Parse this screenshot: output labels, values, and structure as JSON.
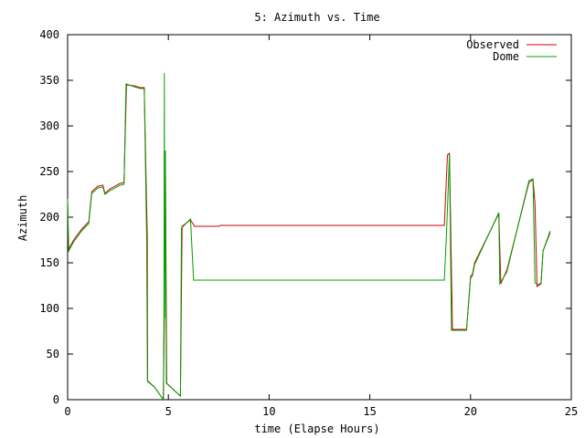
{
  "chart_data": {
    "type": "line",
    "title": "5: Azimuth vs. Time",
    "xlabel": "time (Elapse Hours)",
    "ylabel": "Azimuth",
    "xlim": [
      0,
      25
    ],
    "ylim": [
      0,
      400
    ],
    "xticks": [
      0,
      5,
      10,
      15,
      20,
      25
    ],
    "yticks": [
      0,
      50,
      100,
      150,
      200,
      250,
      300,
      350,
      400
    ],
    "grid": false,
    "legend_position": "top-right",
    "series": [
      {
        "name": "Observed",
        "color": "#cc0000",
        "points": [
          [
            0.0,
            220
          ],
          [
            0.05,
            165
          ],
          [
            0.3,
            175
          ],
          [
            0.7,
            187
          ],
          [
            1.05,
            195
          ],
          [
            1.2,
            228
          ],
          [
            1.5,
            234
          ],
          [
            1.75,
            235
          ],
          [
            1.85,
            226
          ],
          [
            2.1,
            231
          ],
          [
            2.6,
            237
          ],
          [
            2.8,
            238
          ],
          [
            2.92,
            345
          ],
          [
            3.3,
            344
          ],
          [
            3.6,
            342
          ],
          [
            3.8,
            342
          ],
          [
            3.95,
            180
          ],
          [
            3.97,
            20
          ],
          [
            4.3,
            14
          ],
          [
            4.75,
            0
          ],
          [
            4.8,
            90
          ],
          [
            4.85,
            270
          ],
          [
            4.92,
            18
          ],
          [
            5.3,
            10
          ],
          [
            5.6,
            4
          ],
          [
            5.68,
            190
          ],
          [
            6.1,
            197
          ],
          [
            6.3,
            190
          ],
          [
            7.5,
            190
          ],
          [
            7.6,
            191
          ],
          [
            18.7,
            191
          ],
          [
            18.85,
            268
          ],
          [
            18.95,
            270
          ],
          [
            19.1,
            77
          ],
          [
            19.8,
            77
          ],
          [
            20.0,
            135
          ],
          [
            20.1,
            138
          ],
          [
            20.2,
            150
          ],
          [
            21.4,
            204
          ],
          [
            21.5,
            127
          ],
          [
            21.8,
            142
          ],
          [
            22.9,
            238
          ],
          [
            23.1,
            241
          ],
          [
            23.2,
            215
          ],
          [
            23.3,
            124
          ],
          [
            23.5,
            127
          ],
          [
            23.6,
            163
          ],
          [
            23.95,
            183
          ]
        ]
      },
      {
        "name": "Dome",
        "color": "#00a000",
        "points": [
          [
            0.0,
            220
          ],
          [
            0.05,
            163
          ],
          [
            0.3,
            173
          ],
          [
            0.7,
            185
          ],
          [
            1.05,
            193
          ],
          [
            1.2,
            226
          ],
          [
            1.5,
            232
          ],
          [
            1.75,
            233
          ],
          [
            1.85,
            225
          ],
          [
            2.1,
            229
          ],
          [
            2.6,
            235
          ],
          [
            2.8,
            236
          ],
          [
            2.9,
            346
          ],
          [
            3.3,
            343
          ],
          [
            3.6,
            341
          ],
          [
            3.8,
            341
          ],
          [
            3.92,
            180
          ],
          [
            3.96,
            21
          ],
          [
            4.3,
            14
          ],
          [
            4.75,
            0
          ],
          [
            4.78,
            95
          ],
          [
            4.8,
            358
          ],
          [
            4.82,
            90
          ],
          [
            4.85,
            273
          ],
          [
            4.9,
            18
          ],
          [
            5.3,
            10
          ],
          [
            5.6,
            4
          ],
          [
            5.65,
            188
          ],
          [
            6.1,
            198
          ],
          [
            6.25,
            131
          ],
          [
            18.7,
            131
          ],
          [
            18.8,
            180
          ],
          [
            18.95,
            268
          ],
          [
            19.05,
            76
          ],
          [
            19.8,
            76
          ],
          [
            20.0,
            133
          ],
          [
            20.1,
            136
          ],
          [
            20.2,
            148
          ],
          [
            21.4,
            205
          ],
          [
            21.45,
            127
          ],
          [
            21.8,
            140
          ],
          [
            22.9,
            240
          ],
          [
            23.1,
            242
          ],
          [
            23.2,
            128
          ],
          [
            23.35,
            126
          ],
          [
            23.5,
            128
          ],
          [
            23.6,
            163
          ],
          [
            23.95,
            185
          ]
        ]
      }
    ]
  }
}
